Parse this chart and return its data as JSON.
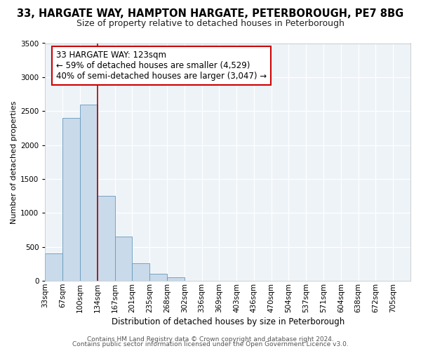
{
  "title1": "33, HARGATE WAY, HAMPTON HARGATE, PETERBOROUGH, PE7 8BG",
  "title2": "Size of property relative to detached houses in Peterborough",
  "xlabel": "Distribution of detached houses by size in Peterborough",
  "ylabel": "Number of detached properties",
  "bar_values": [
    400,
    2400,
    2600,
    1250,
    650,
    260,
    100,
    50,
    0,
    0,
    0,
    0,
    0,
    0,
    0,
    0,
    0,
    0,
    0,
    0
  ],
  "categories": [
    "33sqm",
    "67sqm",
    "100sqm",
    "134sqm",
    "167sqm",
    "201sqm",
    "235sqm",
    "268sqm",
    "302sqm",
    "336sqm",
    "369sqm",
    "403sqm",
    "436sqm",
    "470sqm",
    "504sqm",
    "537sqm",
    "571sqm",
    "604sqm",
    "638sqm",
    "672sqm",
    "705sqm"
  ],
  "ylim": [
    0,
    3500
  ],
  "yticks": [
    0,
    500,
    1000,
    1500,
    2000,
    2500,
    3000,
    3500
  ],
  "bar_color": "#c9daea",
  "bar_edge_color": "#6699bb",
  "vline_x": 3,
  "vline_color": "#aa0000",
  "annotation_title": "33 HARGATE WAY: 123sqm",
  "annotation_line1": "← 59% of detached houses are smaller (4,529)",
  "annotation_line2": "40% of semi-detached houses are larger (3,047) →",
  "annotation_box_edge": "#cc0000",
  "footer1": "Contains HM Land Registry data © Crown copyright and database right 2024.",
  "footer2": "Contains public sector information licensed under the Open Government Licence v3.0.",
  "fig_bg_color": "#ffffff",
  "plot_bg_color": "#eef3f8",
  "title1_fontsize": 10.5,
  "title2_fontsize": 9,
  "annotation_fontsize": 8.5,
  "tick_fontsize": 7.5,
  "ylabel_fontsize": 8,
  "xlabel_fontsize": 8.5,
  "footer_fontsize": 6.5,
  "grid_color": "#ccddee"
}
